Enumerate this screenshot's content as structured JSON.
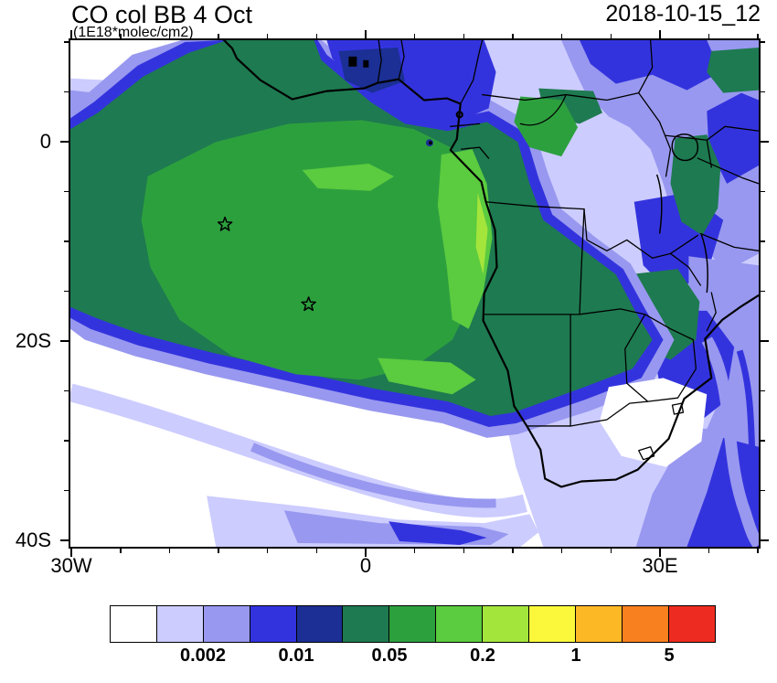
{
  "header": {
    "title": "CO col BB 4 Oct",
    "subtitle": "(1E18*molec/cm2)",
    "date_label": "2018-10-15_12"
  },
  "axes": {
    "y_ticks": [
      {
        "label": "0"
      },
      {
        "label": "20S"
      },
      {
        "label": "40S"
      }
    ],
    "x_ticks": [
      {
        "label": "30W"
      },
      {
        "label": "0"
      },
      {
        "label": "30E"
      }
    ]
  },
  "colorbar": {
    "colors": [
      "#FFFFFF",
      "#CCCCFF",
      "#9898F0",
      "#3333DE",
      "#1B2F94",
      "#1E7A50",
      "#2DA03E",
      "#5BCB3F",
      "#A4E53C",
      "#FBF83B",
      "#FDB826",
      "#F8801F",
      "#EE2B20"
    ],
    "labels": [
      "0.002",
      "0.01",
      "0.05",
      "0.2",
      "1",
      "5"
    ]
  },
  "chart_data": {
    "type": "heatmap",
    "title": "CO col BB 4 Oct",
    "units": "1E18*molec/cm2",
    "valid_time": "2018-10-15_12",
    "map_extent": {
      "lon": [
        -30.3,
        40.3
      ],
      "lat": [
        -41.5,
        10.4
      ]
    },
    "x_tick_labels": [
      "30W",
      "0",
      "30E"
    ],
    "y_tick_labels": [
      "0",
      "20S",
      "40S"
    ],
    "contour_levels": [
      0.001,
      0.002,
      0.005,
      0.01,
      0.02,
      0.05,
      0.1,
      0.2,
      0.5,
      1,
      2,
      5
    ],
    "labeled_levels": [
      "0.002",
      "0.01",
      "0.05",
      "0.2",
      "1",
      "5"
    ],
    "palette": [
      "#FFFFFF",
      "#CCCCFF",
      "#9898F0",
      "#3333DE",
      "#1B2F94",
      "#1E7A50",
      "#2DA03E",
      "#5BCB3F",
      "#A4E53C",
      "#FBF83B",
      "#FDB826",
      "#F8801F",
      "#EE2B20"
    ],
    "legend_position": "bottom",
    "grid": false,
    "markers": [
      {
        "symbol": "star",
        "lon": -14.4,
        "lat": -8.3
      },
      {
        "symbol": "star",
        "lon": -5.9,
        "lat": -16.3
      }
    ],
    "features": [
      "Filled-contour map of CO column over Africa and the tropical/south Atlantic with coastlines and country borders overlaid",
      "Broad plume of 0.02-0.1 (dark green) covering the eastern tropical Atlantic and central-southern Africa from ~30W to ~25E, equator to ~22S",
      "Maximum band 0.1-0.5 (bright green) along the Gabon/Congo coast near 5-13E between the equator and ~20S",
      "Moderate values 0.005-0.02 (blues) over Nigeria/Sahel, East Africa and the Mozambique coast",
      "Background 0.001-0.005 (lavenders) fringing the plume and in swirls across the subtropical South Atlantic and southwest Indian Ocean",
      "Values below 0.001 (white) over the south-central Atlantic gyre, interior South Africa/Botswana and the northwest corner"
    ]
  }
}
